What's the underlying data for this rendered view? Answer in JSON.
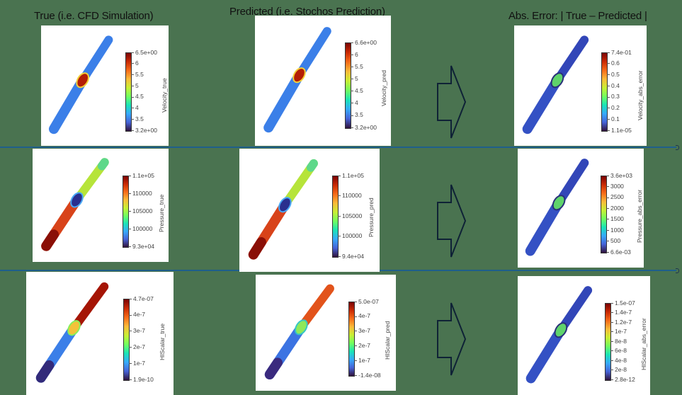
{
  "colors": {
    "background": "#4a7350",
    "separator": "#1f5f8b",
    "arrow_stroke": "#0f2236",
    "colormap": [
      "#30123b",
      "#4662d7",
      "#36aaf9",
      "#1ae4b6",
      "#72fe5e",
      "#c8ef34",
      "#faba39",
      "#f66b19",
      "#ca2a04",
      "#7a0403"
    ]
  },
  "columns": [
    {
      "title": "True (i.e. CFD Simulation)"
    },
    {
      "title": "Predicted (i.e. Stochos Prediction)"
    },
    {
      "title": "Abs. Error: | True – Predicted |"
    }
  ],
  "rows": [
    {
      "variable": "Velocity",
      "panels": [
        {
          "label": "Velocity_true",
          "ticks": [
            "6.5e+00",
            "6",
            "5.5",
            "5",
            "4.5",
            "4",
            "3.5",
            "3.2e+00"
          ],
          "kind": "velocity"
        },
        {
          "label": "Velocity_pred",
          "ticks": [
            "6.6e+00",
            "6",
            "5.5",
            "5",
            "4.5",
            "4",
            "3.5",
            "3.2e+00"
          ],
          "kind": "velocity"
        },
        {
          "label": "Velocity_abs_error",
          "ticks": [
            "7.4e-01",
            "0.6",
            "0.5",
            "0.4",
            "0.3",
            "0.2",
            "0.1",
            "1.1e-05"
          ],
          "kind": "error"
        }
      ]
    },
    {
      "variable": "Pressure",
      "panels": [
        {
          "label": "Pressure_true",
          "ticks": [
            "1.1e+05",
            "110000",
            "105000",
            "100000",
            "9.3e+04"
          ],
          "kind": "pressure"
        },
        {
          "label": "Pressure_pred",
          "ticks": [
            "1.1e+05",
            "110000",
            "105000",
            "100000",
            "9.4e+04"
          ],
          "kind": "pressure"
        },
        {
          "label": "Pressure_abs_error",
          "ticks": [
            "3.6e+03",
            "3000",
            "2500",
            "2000",
            "1500",
            "1000",
            "500",
            "6.6e-03"
          ],
          "kind": "error"
        }
      ]
    },
    {
      "variable": "HIScalar",
      "panels": [
        {
          "label": "HIScalar_true",
          "ticks": [
            "4.7e-07",
            "4e-7",
            "3e-7",
            "2e-7",
            "1e-7",
            "1.9e-10"
          ],
          "kind": "scalar_true"
        },
        {
          "label": "HIScalar_pred",
          "ticks": [
            "5.0e-07",
            "4e-7",
            "3e-7",
            "2e-7",
            "1e-7",
            "-1.4e-08"
          ],
          "kind": "scalar_pred"
        },
        {
          "label": "HIScalar_abs_error",
          "ticks": [
            "1.5e-07",
            "1.4e-7",
            "1.2e-7",
            "1e-7",
            "8e-8",
            "6e-8",
            "4e-8",
            "2e-8",
            "2.8e-12"
          ],
          "kind": "error"
        }
      ]
    }
  ],
  "arrows": [
    {
      "icon": "right-arrow-outline-icon"
    },
    {
      "icon": "right-arrow-outline-icon"
    },
    {
      "icon": "right-arrow-outline-icon"
    }
  ]
}
